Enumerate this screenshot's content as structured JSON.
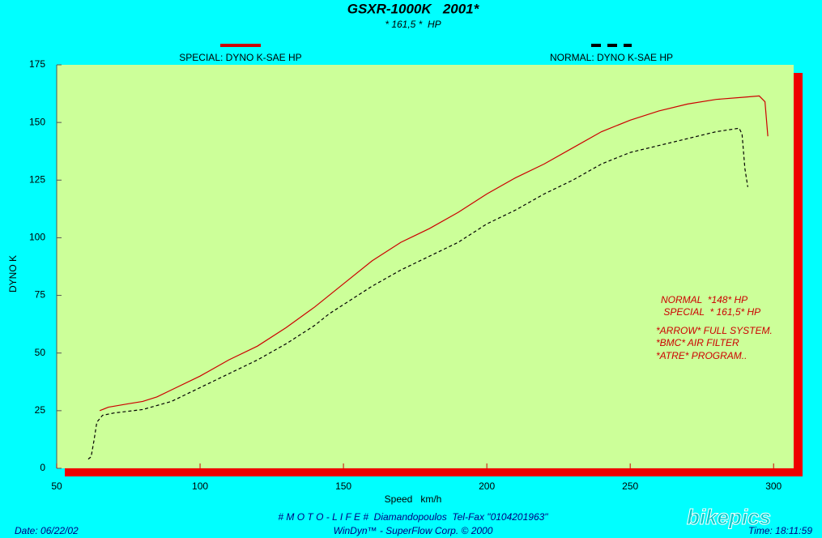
{
  "chart_data": {
    "type": "line",
    "title": "GSXR-1000K   2001*",
    "subtitle": "* 161,5 *  HP",
    "x_label": "Speed   km/h",
    "y_label": "DYNO K",
    "xlim": [
      50,
      307
    ],
    "ylim": [
      0,
      175
    ],
    "xticks": [
      50,
      100,
      150,
      200,
      250,
      300
    ],
    "yticks": [
      0,
      25,
      50,
      75,
      100,
      125,
      150,
      175
    ],
    "series": [
      {
        "name": "SPECIAL: DYNO K-SAE HP",
        "color": "#cc0000",
        "dash": false,
        "x": [
          65,
          68,
          75,
          80,
          85,
          90,
          100,
          110,
          120,
          130,
          140,
          145,
          150,
          160,
          170,
          180,
          190,
          200,
          210,
          220,
          230,
          240,
          250,
          260,
          270,
          280,
          290,
          295,
          297,
          298
        ],
        "values": [
          25,
          26.5,
          28,
          29,
          31,
          34,
          40,
          47,
          53,
          61,
          70,
          75,
          80,
          90,
          98,
          104,
          111,
          119,
          126,
          132,
          139,
          146,
          151,
          155,
          158,
          160,
          161,
          161.5,
          159,
          144
        ]
      },
      {
        "name": "NORMAL: DYNO K-SAE HP",
        "color": "#000000",
        "dash": true,
        "x": [
          61,
          62,
          63,
          64,
          66,
          70,
          80,
          90,
          100,
          110,
          120,
          130,
          140,
          145,
          150,
          160,
          170,
          180,
          190,
          200,
          210,
          220,
          230,
          240,
          250,
          260,
          270,
          280,
          288,
          289,
          290,
          291
        ],
        "values": [
          4,
          5,
          12,
          20,
          23,
          24,
          25.5,
          29,
          35,
          41,
          47,
          54,
          62,
          67,
          71,
          79,
          86,
          92,
          98,
          106,
          112,
          119,
          125,
          132,
          137,
          140,
          143,
          146,
          147.5,
          145,
          130,
          122
        ]
      }
    ],
    "annotations": [
      "NORMAL  *148* HP",
      " SPECIAL  * 161,5* HP",
      "*ARROW* FULL SYSTEM.",
      "*BMC* AIR FILTER",
      "*ATRE* PROGRAM.."
    ]
  },
  "footer": {
    "credit": "# M O T O - L I F E #  Diamandopoulos  Tel-Fax \"0104201963\"",
    "software": "WinDyn™ - SuperFlow Corp. © 2000",
    "date": "Date: 06/22/02",
    "time": "Time: 18:11:59"
  },
  "watermark": "bikepics"
}
